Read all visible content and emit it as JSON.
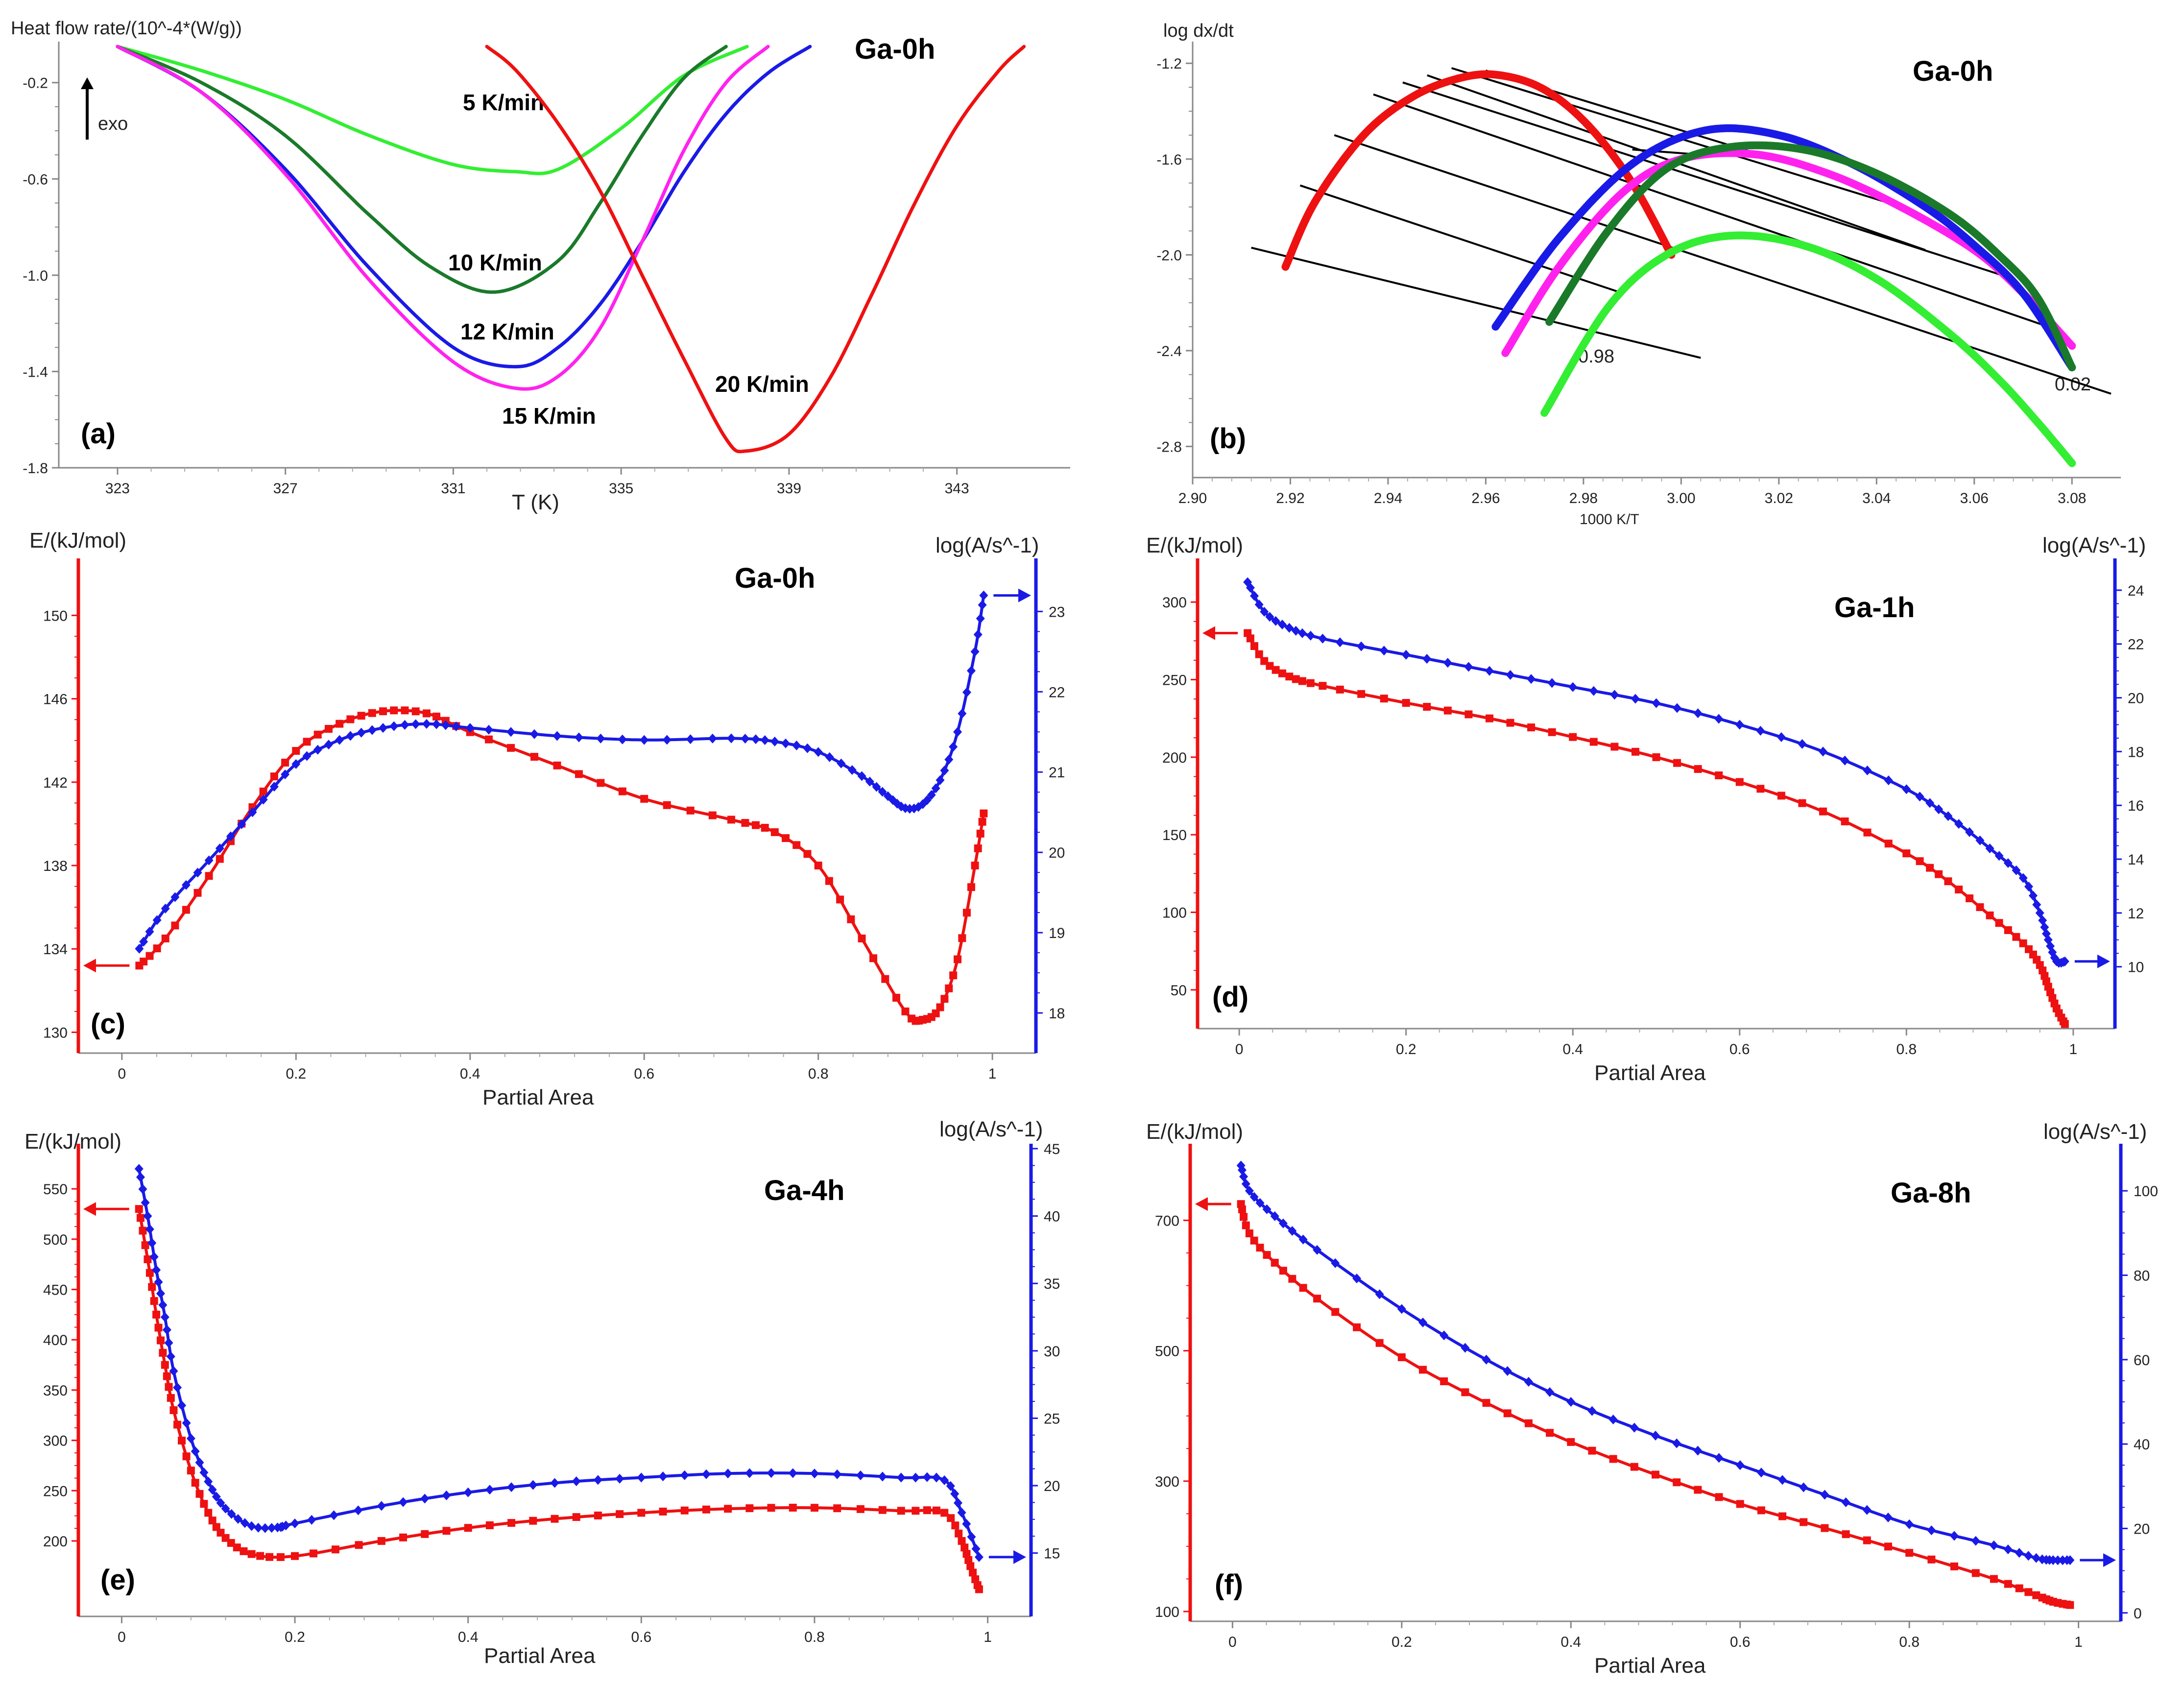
{
  "figure": {
    "colors": {
      "red": "#ee1111",
      "blue": "#1a1ae6",
      "magenta": "#ff22ee",
      "lime": "#33ee33",
      "darkgreen": "#1a7a2a",
      "black": "#000000"
    }
  },
  "chart_data": [
    {
      "id": "a",
      "panel_label": "(a)",
      "sample": "Ga-0h",
      "type": "line",
      "ylabel": "Heat flow rate/(10^-4*(W/g))",
      "xlabel": "T (K)",
      "exo_label": "exo",
      "xlim": [
        321.6,
        345.7
      ],
      "ylim": [
        -1.8,
        -0.05
      ],
      "xticks": [
        323,
        327,
        331,
        335,
        339,
        343
      ],
      "yticks": [
        -0.2,
        -0.6,
        -1.0,
        -1.4,
        -1.8
      ],
      "series": [
        {
          "name": "5 K/min",
          "color": "#33ee33",
          "x": [
            323.0,
            325.0,
            327.0,
            329.0,
            331.0,
            332.5,
            333.5,
            335.0,
            336.5,
            338.0
          ],
          "y": [
            -0.05,
            -0.15,
            -0.27,
            -0.42,
            -0.54,
            -0.57,
            -0.56,
            -0.39,
            -0.17,
            -0.05
          ]
        },
        {
          "name": "10 K/min",
          "color": "#1a7a2a",
          "x": [
            323.0,
            325.0,
            327.0,
            329.0,
            330.5,
            332.0,
            333.5,
            334.5,
            335.5,
            336.5,
            337.5
          ],
          "y": [
            -0.05,
            -0.2,
            -0.42,
            -0.75,
            -0.97,
            -1.07,
            -0.94,
            -0.7,
            -0.42,
            -0.18,
            -0.05
          ]
        },
        {
          "name": "12 K/min",
          "color": "#1a1ae6",
          "x": [
            323.0,
            325.0,
            327.0,
            329.0,
            331.0,
            332.5,
            333.5,
            334.5,
            335.5,
            336.5,
            337.5,
            338.5,
            339.5
          ],
          "y": [
            -0.05,
            -0.24,
            -0.56,
            -0.97,
            -1.3,
            -1.38,
            -1.3,
            -1.12,
            -0.86,
            -0.57,
            -0.33,
            -0.16,
            -0.05
          ]
        },
        {
          "name": "15 K/min",
          "color": "#ff22ee",
          "x": [
            323.0,
            325.0,
            327.0,
            329.0,
            331.0,
            332.5,
            333.5,
            334.5,
            335.5,
            336.5,
            337.5,
            338.5
          ],
          "y": [
            -0.05,
            -0.24,
            -0.58,
            -1.02,
            -1.36,
            -1.47,
            -1.42,
            -1.22,
            -0.86,
            -0.48,
            -0.2,
            -0.05
          ]
        },
        {
          "name": "20 K/min",
          "color": "#ee1111",
          "x": [
            331.8,
            332.5,
            333.5,
            334.5,
            335.5,
            336.5,
            337.5,
            338.0,
            339.0,
            340.0,
            341.0,
            342.0,
            343.0,
            344.0,
            344.6
          ],
          "y": [
            -0.05,
            -0.15,
            -0.37,
            -0.65,
            -1.0,
            -1.35,
            -1.68,
            -1.73,
            -1.66,
            -1.42,
            -1.07,
            -0.7,
            -0.38,
            -0.15,
            -0.05
          ]
        }
      ]
    },
    {
      "id": "b",
      "panel_label": "(b)",
      "sample": "Ga-0h",
      "type": "line",
      "ylabel": "log dx/dt",
      "xlabel": "1000 K/T",
      "xlim": [
        2.9,
        3.09
      ],
      "ylim": [
        -2.93,
        -1.13
      ],
      "xticks": [
        2.9,
        2.92,
        2.94,
        2.96,
        2.98,
        3.0,
        3.02,
        3.04,
        3.06,
        3.08
      ],
      "yticks": [
        -1.2,
        -1.6,
        -2.0,
        -2.4,
        -2.8
      ],
      "annotations": [
        "0.98",
        "0.02"
      ],
      "series": [
        {
          "name": "20 K/min",
          "color": "#ee1111",
          "x": [
            2.919,
            2.925,
            2.935,
            2.945,
            2.955,
            2.963,
            2.972,
            2.981,
            2.99,
            2.998
          ],
          "y": [
            -2.05,
            -1.78,
            -1.5,
            -1.34,
            -1.26,
            -1.25,
            -1.31,
            -1.46,
            -1.7,
            -2.0
          ]
        },
        {
          "name": "15 K/min",
          "color": "#ff22ee",
          "x": [
            2.964,
            2.975,
            2.988,
            3.0,
            3.015,
            3.03,
            3.045,
            3.06,
            3.07,
            3.08
          ],
          "y": [
            -2.41,
            -2.05,
            -1.74,
            -1.6,
            -1.58,
            -1.66,
            -1.8,
            -1.98,
            -2.16,
            -2.38
          ]
        },
        {
          "name": "12 K/min",
          "color": "#1a1ae6",
          "x": [
            2.962,
            2.975,
            2.99,
            3.005,
            3.02,
            3.035,
            3.05,
            3.06,
            3.07,
            3.08
          ],
          "y": [
            -2.3,
            -1.93,
            -1.62,
            -1.48,
            -1.5,
            -1.62,
            -1.8,
            -1.96,
            -2.16,
            -2.47
          ]
        },
        {
          "name": "10 K/min",
          "color": "#1a7a2a",
          "x": [
            2.973,
            2.985,
            2.997,
            3.01,
            3.025,
            3.04,
            3.055,
            3.065,
            3.073,
            3.08
          ],
          "y": [
            -2.28,
            -1.9,
            -1.64,
            -1.55,
            -1.56,
            -1.66,
            -1.83,
            -2.0,
            -2.18,
            -2.47
          ]
        },
        {
          "name": "5 K/min",
          "color": "#33ee33",
          "x": [
            2.972,
            2.985,
            2.997,
            3.01,
            3.025,
            3.04,
            3.055,
            3.065,
            3.073,
            3.08
          ],
          "y": [
            -2.66,
            -2.22,
            -2.0,
            -1.92,
            -1.96,
            -2.1,
            -2.33,
            -2.52,
            -2.7,
            -2.87
          ]
        }
      ],
      "isoconversional_lines": [
        {
          "x1": 2.912,
          "y1": -1.97,
          "x2": 3.004,
          "y2": -2.43
        },
        {
          "x1": 2.922,
          "y1": -1.71,
          "x2": 2.988,
          "y2": -2.16
        },
        {
          "x1": 2.929,
          "y1": -1.5,
          "x2": 3.088,
          "y2": -2.58
        },
        {
          "x1": 2.937,
          "y1": -1.33,
          "x2": 3.078,
          "y2": -2.32
        },
        {
          "x1": 2.943,
          "y1": -1.28,
          "x2": 3.068,
          "y2": -2.1
        },
        {
          "x1": 2.948,
          "y1": -1.25,
          "x2": 3.05,
          "y2": -1.98
        },
        {
          "x1": 2.953,
          "y1": -1.22,
          "x2": 3.042,
          "y2": -1.78
        },
        {
          "x1": 2.96,
          "y1": -1.23,
          "x2": 3.032,
          "y2": -1.68
        },
        {
          "x1": 2.99,
          "y1": -1.56,
          "x2": 3.003,
          "y2": -1.58
        }
      ]
    },
    {
      "id": "c",
      "panel_label": "(c)",
      "sample": "Ga-0h",
      "type": "line",
      "ylabel_left": "E/(kJ/mol)",
      "ylabel_right": "log(A/s^-1)",
      "xlabel": "Partial Area",
      "xlim": [
        -0.05,
        1.05
      ],
      "ylim_left": [
        129.0,
        152.5
      ],
      "ylim_right": [
        17.5,
        23.6
      ],
      "xticks": [
        0,
        0.2,
        0.4,
        0.6,
        0.8,
        1.0
      ],
      "yticks_left": [
        130,
        134,
        138,
        142,
        146,
        150
      ],
      "yticks_right": [
        18,
        19,
        20,
        21,
        22,
        23
      ],
      "series": [
        {
          "name": "E",
          "axis": "left",
          "color": "#ee1111",
          "x": [
            0.02,
            0.05,
            0.1,
            0.15,
            0.2,
            0.25,
            0.3,
            0.35,
            0.4,
            0.5,
            0.6,
            0.7,
            0.75,
            0.8,
            0.85,
            0.9,
            0.92,
            0.94,
            0.96,
            0.98,
            0.99
          ],
          "y": [
            133.2,
            134.5,
            137.5,
            140.8,
            143.5,
            144.8,
            145.4,
            145.3,
            144.4,
            142.8,
            141.2,
            140.2,
            139.6,
            138.0,
            134.5,
            131.0,
            130.6,
            131.2,
            133.5,
            138.0,
            140.5
          ]
        },
        {
          "name": "log A",
          "axis": "right",
          "color": "#1a1ae6",
          "x": [
            0.02,
            0.05,
            0.1,
            0.15,
            0.2,
            0.25,
            0.3,
            0.35,
            0.4,
            0.5,
            0.6,
            0.7,
            0.75,
            0.8,
            0.85,
            0.88,
            0.9,
            0.92,
            0.94,
            0.96,
            0.98,
            0.99
          ],
          "y": [
            18.8,
            19.3,
            19.9,
            20.5,
            21.1,
            21.4,
            21.55,
            21.6,
            21.55,
            21.45,
            21.4,
            21.42,
            21.38,
            21.25,
            20.95,
            20.7,
            20.55,
            20.6,
            20.9,
            21.5,
            22.5,
            23.2
          ]
        }
      ]
    },
    {
      "id": "d",
      "panel_label": "(d)",
      "sample": "Ga-1h",
      "type": "line",
      "ylabel_left": "E/(kJ/mol)",
      "ylabel_right": "log(A/s^-1)",
      "xlabel": "Partial Area",
      "xlim": [
        -0.05,
        1.05
      ],
      "ylim_left": [
        25,
        325
      ],
      "ylim_right": [
        7.7,
        25.0
      ],
      "xticks": [
        0,
        0.2,
        0.4,
        0.6,
        0.8,
        1.0
      ],
      "yticks_left": [
        50,
        100,
        150,
        200,
        250,
        300
      ],
      "yticks_right": [
        10,
        12,
        14,
        16,
        18,
        20,
        22,
        24
      ],
      "series": [
        {
          "name": "E",
          "axis": "left",
          "color": "#ee1111",
          "x": [
            0.01,
            0.03,
            0.06,
            0.1,
            0.2,
            0.3,
            0.4,
            0.5,
            0.6,
            0.7,
            0.8,
            0.85,
            0.9,
            0.94,
            0.96,
            0.97,
            0.98,
            0.99
          ],
          "y": [
            280,
            262,
            252,
            246,
            235,
            225,
            213,
            200,
            184,
            165,
            138,
            120,
            98,
            80,
            66,
            52,
            38,
            28
          ]
        },
        {
          "name": "log A",
          "axis": "right",
          "color": "#1a1ae6",
          "x": [
            0.01,
            0.03,
            0.06,
            0.1,
            0.2,
            0.3,
            0.4,
            0.5,
            0.6,
            0.7,
            0.8,
            0.85,
            0.9,
            0.94,
            0.96,
            0.97,
            0.98,
            0.99
          ],
          "y": [
            24.3,
            23.2,
            22.6,
            22.2,
            21.6,
            21.0,
            20.4,
            19.8,
            19.0,
            18.0,
            16.6,
            15.6,
            14.4,
            13.3,
            12.0,
            11.0,
            10.2,
            10.2
          ]
        }
      ]
    },
    {
      "id": "e",
      "panel_label": "(e)",
      "sample": "Ga-4h",
      "type": "line",
      "ylabel_left": "E/(kJ/mol)",
      "ylabel_right": "log(A/s^-1)",
      "xlabel": "Partial Area",
      "xlim": [
        -0.05,
        1.05
      ],
      "ylim_left": [
        125,
        590
      ],
      "ylim_right": [
        10.3,
        45.0
      ],
      "xticks": [
        0,
        0.2,
        0.4,
        0.6,
        0.8,
        1.0
      ],
      "yticks_left": [
        200,
        250,
        300,
        350,
        400,
        450,
        500,
        550
      ],
      "yticks_right": [
        15,
        20,
        25,
        30,
        35,
        40,
        45
      ],
      "series": [
        {
          "name": "E",
          "axis": "left",
          "color": "#ee1111",
          "x": [
            0.02,
            0.03,
            0.04,
            0.05,
            0.06,
            0.08,
            0.1,
            0.12,
            0.15,
            0.2,
            0.3,
            0.4,
            0.5,
            0.6,
            0.7,
            0.8,
            0.9,
            0.95,
            0.97,
            0.98,
            0.99
          ],
          "y": [
            530,
            480,
            425,
            375,
            330,
            270,
            228,
            203,
            187,
            185,
            200,
            213,
            222,
            228,
            232,
            233,
            230,
            228,
            200,
            175,
            152
          ]
        },
        {
          "name": "log A",
          "axis": "right",
          "color": "#1a1ae6",
          "x": [
            0.02,
            0.03,
            0.04,
            0.05,
            0.06,
            0.08,
            0.1,
            0.12,
            0.15,
            0.18,
            0.2,
            0.3,
            0.4,
            0.5,
            0.6,
            0.7,
            0.8,
            0.9,
            0.95,
            0.97,
            0.99
          ],
          "y": [
            43.5,
            40.0,
            36.0,
            32.5,
            28.5,
            23.5,
            20.3,
            18.3,
            17.0,
            16.9,
            17.2,
            18.5,
            19.5,
            20.2,
            20.6,
            20.9,
            20.9,
            20.6,
            20.4,
            18.0,
            14.7
          ]
        }
      ]
    },
    {
      "id": "f",
      "panel_label": "(f)",
      "sample": "Ga-8h",
      "type": "line",
      "ylabel_left": "E/(kJ/mol)",
      "ylabel_right": "log(A/s^-1)",
      "xlabel": "Partial Area",
      "xlim": [
        -0.05,
        1.05
      ],
      "ylim_left": [
        85,
        810
      ],
      "ylim_right": [
        -2.0,
        110.0
      ],
      "xticks": [
        0,
        0.2,
        0.4,
        0.6,
        0.8,
        1.0
      ],
      "yticks_left": [
        100,
        300,
        500,
        700
      ],
      "yticks_right": [
        0,
        20,
        40,
        60,
        80,
        100
      ],
      "series": [
        {
          "name": "E",
          "axis": "left",
          "color": "#ee1111",
          "x": [
            0.01,
            0.02,
            0.05,
            0.1,
            0.2,
            0.3,
            0.4,
            0.5,
            0.6,
            0.7,
            0.8,
            0.9,
            0.95,
            0.97,
            0.99
          ],
          "y": [
            725,
            680,
            635,
            580,
            490,
            420,
            360,
            310,
            265,
            228,
            190,
            150,
            125,
            115,
            110
          ]
        },
        {
          "name": "log A",
          "axis": "right",
          "color": "#1a1ae6",
          "x": [
            0.01,
            0.02,
            0.05,
            0.1,
            0.2,
            0.3,
            0.4,
            0.5,
            0.6,
            0.7,
            0.8,
            0.9,
            0.95,
            0.97,
            0.99
          ],
          "y": [
            106,
            100,
            94,
            86,
            72,
            60,
            50,
            42,
            35,
            28,
            21,
            16,
            13,
            12.5,
            12.5
          ]
        }
      ]
    }
  ],
  "panel_a_labels": {
    "r5": "5 K/min",
    "r10": "10 K/min",
    "r12": "12 K/min",
    "r15": "15 K/min",
    "r20": "20 K/min"
  }
}
